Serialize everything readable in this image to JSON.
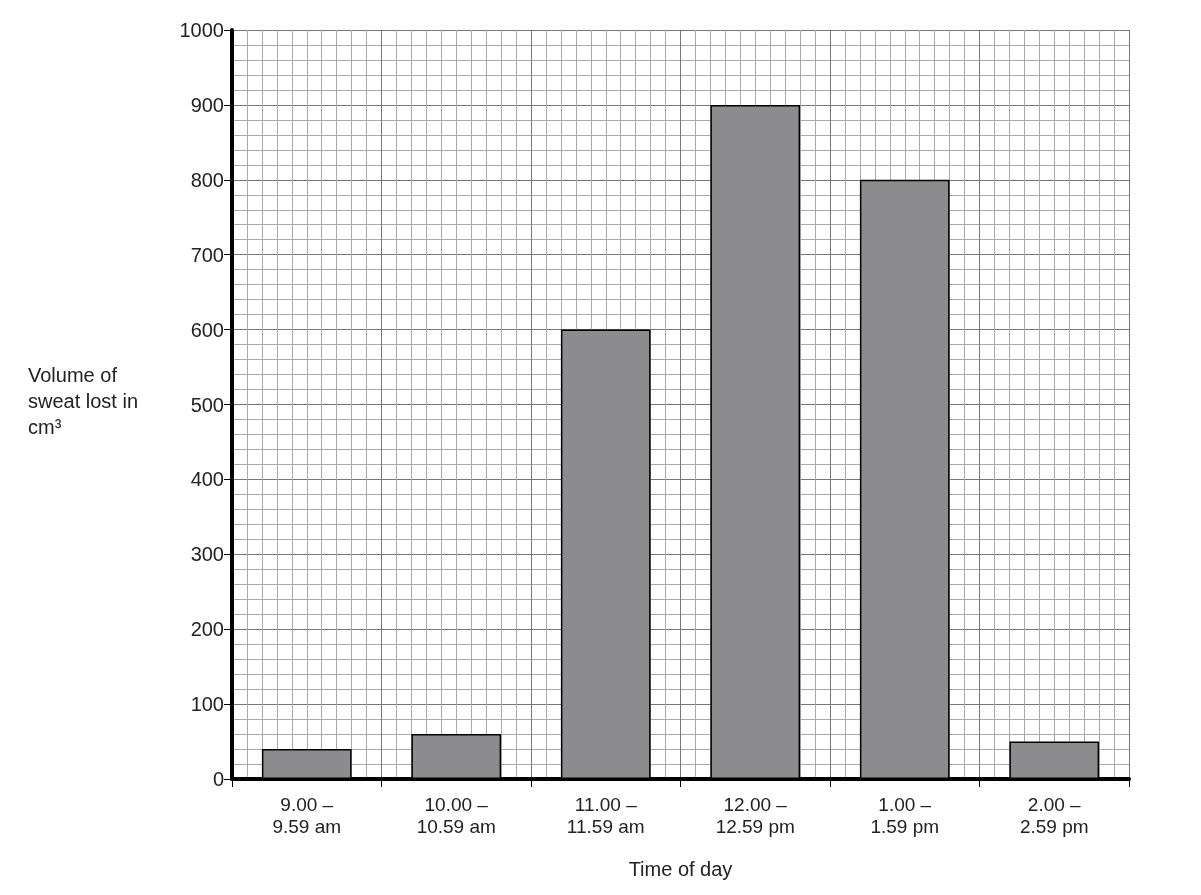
{
  "chart_data": {
    "type": "bar",
    "xlabel": "Time of day",
    "ylabel": "Volume of sweat lost in cm³",
    "categories": [
      "9.00 –\n9.59 am",
      "10.00 –\n10.59 am",
      "11.00 –\n11.59 am",
      "12.00 –\n12.59 pm",
      "1.00 –\n1.59 pm",
      "2.00 –\n2.59 pm"
    ],
    "values": [
      40,
      60,
      600,
      900,
      800,
      50
    ],
    "color": "#8c8c8e",
    "ylim": [
      0,
      1000
    ],
    "yticks": [
      0,
      100,
      200,
      300,
      400,
      500,
      600,
      700,
      800,
      900,
      1000
    ],
    "grid": true
  }
}
